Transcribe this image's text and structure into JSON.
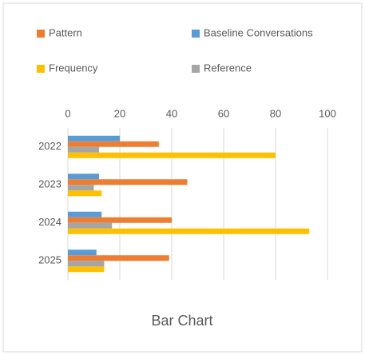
{
  "chart_data": {
    "type": "bar",
    "orientation": "horizontal",
    "title": "Bar Chart",
    "categories": [
      "2022",
      "2023",
      "2024",
      "2025"
    ],
    "series": [
      {
        "name": "Pattern",
        "color": "#ed7d31",
        "values": [
          35,
          46,
          40,
          39
        ]
      },
      {
        "name": "Baseline Conversations",
        "color": "#5b9bd5",
        "values": [
          20,
          12,
          13,
          11
        ]
      },
      {
        "name": "Frequency",
        "color": "#ffc000",
        "values": [
          80,
          13,
          93,
          14
        ]
      },
      {
        "name": "Reference",
        "color": "#a5a5a5",
        "values": [
          12,
          10,
          17,
          14
        ]
      }
    ],
    "xlim": [
      0,
      100
    ],
    "xticks": [
      0,
      20,
      40,
      60,
      80,
      100
    ],
    "grid": true,
    "legend": "top"
  }
}
